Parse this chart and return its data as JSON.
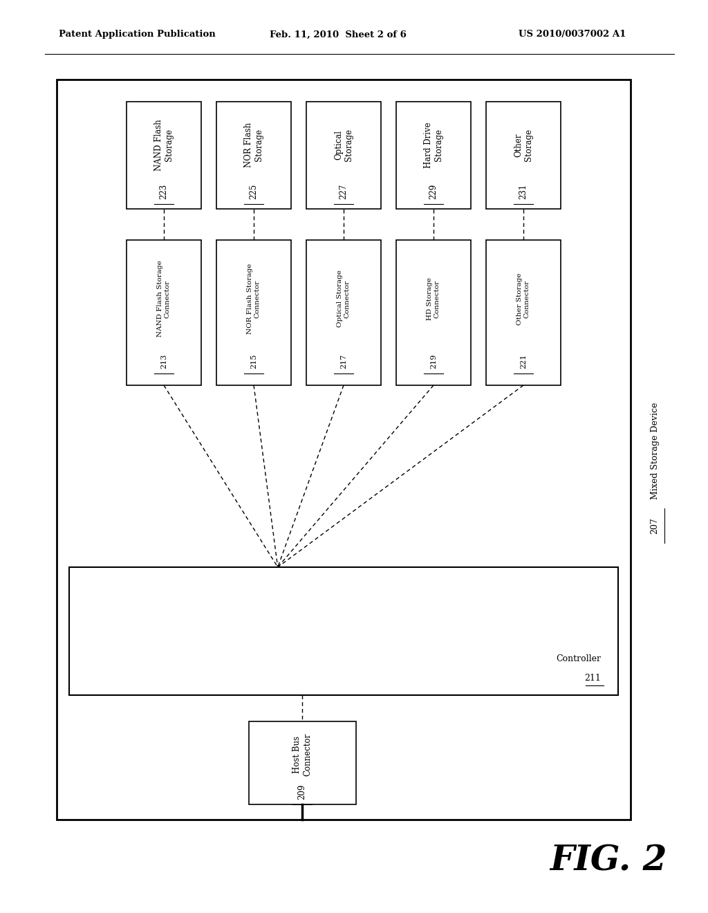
{
  "header_left": "Patent Application Publication",
  "header_mid": "Feb. 11, 2010  Sheet 2 of 6",
  "header_right": "US 2010/0037002 A1",
  "fig_label": "FIG. 2",
  "mixed_storage_label": "Mixed Storage Device 207",
  "background_color": "#ffffff",
  "box_edge_color": "#000000",
  "storage_boxes": [
    {
      "main": "NAND Flash\nStorage",
      "num": "223"
    },
    {
      "main": "NOR Flash\nStorage",
      "num": "225"
    },
    {
      "main": "Optical\nStorage",
      "num": "227"
    },
    {
      "main": "Hard Drive\nStorage",
      "num": "229"
    },
    {
      "main": "Other\nStorage",
      "num": "231"
    }
  ],
  "connector_boxes": [
    {
      "main": "NAND Flash Storage\nConnector",
      "num": "213"
    },
    {
      "main": "NOR Flash Storage\nConnector",
      "num": "215"
    },
    {
      "main": "Optical Storage\nConnector",
      "num": "217"
    },
    {
      "main": "HD Storage\nConnector",
      "num": "219"
    },
    {
      "main": "Other Storage\nConnector",
      "num": "221"
    }
  ],
  "controller_label": "Controller",
  "controller_num": "211",
  "host_bus_label": "Host Bus\nConnector",
  "host_bus_num": "209"
}
